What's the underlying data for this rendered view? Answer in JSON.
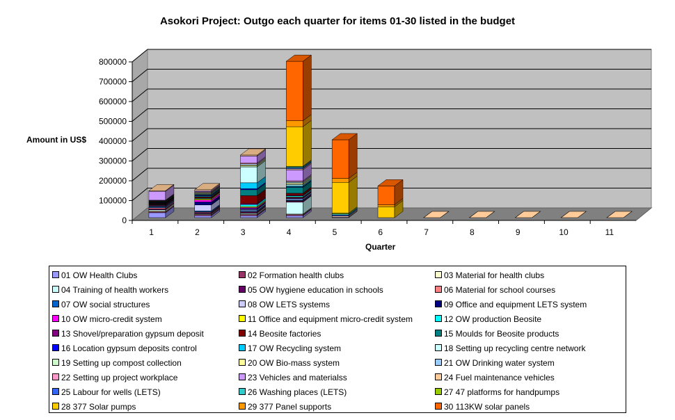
{
  "chart_data": {
    "type": "bar",
    "stacked": true,
    "three_d": true,
    "title": "Asokori Project: Outgo each quarter for items 01-30 listed in the budget",
    "xlabel": "Quarter",
    "ylabel": "Amount in US$",
    "ylim": [
      0,
      800000
    ],
    "yticks": [
      "0",
      "100000",
      "200000",
      "300000",
      "400000",
      "500000",
      "600000",
      "700000",
      "800000"
    ],
    "categories": [
      "1",
      "2",
      "3",
      "4",
      "5",
      "6",
      "7",
      "8",
      "9",
      "10",
      "11"
    ],
    "grid": true,
    "legend_position": "bottom",
    "series": [
      {
        "name": "01 OW Health Clubs",
        "color": "#9999FF",
        "values": [
          25000,
          10000,
          10000,
          10000,
          3000,
          0,
          0,
          0,
          0,
          0,
          0
        ]
      },
      {
        "name": "02 Formation health clubs",
        "color": "#993366",
        "values": [
          5000,
          5000,
          5000,
          5000,
          0,
          0,
          0,
          0,
          0,
          0,
          0
        ]
      },
      {
        "name": "03 Material for health clubs",
        "color": "#FFFFCC",
        "values": [
          5000,
          3000,
          3000,
          3000,
          0,
          0,
          0,
          0,
          0,
          0,
          0
        ]
      },
      {
        "name": "04 Training of health workers",
        "color": "#CCFFFF",
        "values": [
          5000,
          3000,
          5000,
          60000,
          0,
          0,
          0,
          0,
          0,
          0,
          0
        ]
      },
      {
        "name": "05 OW hygiene education in schools",
        "color": "#660066",
        "values": [
          5000,
          5000,
          5000,
          5000,
          0,
          0,
          0,
          0,
          0,
          0,
          0
        ]
      },
      {
        "name": "06 Material for school courses",
        "color": "#FF8080",
        "values": [
          5000,
          3000,
          3000,
          3000,
          0,
          0,
          0,
          0,
          0,
          0,
          0
        ]
      },
      {
        "name": "07 OW social structures",
        "color": "#0066CC",
        "values": [
          5000,
          5000,
          5000,
          5000,
          0,
          0,
          0,
          0,
          0,
          0,
          0
        ]
      },
      {
        "name": "08 OW LETS systems",
        "color": "#CCCCFF",
        "values": [
          3000,
          30000,
          5000,
          5000,
          0,
          0,
          0,
          0,
          0,
          0,
          0
        ]
      },
      {
        "name": "09 Office and equipment LETS system",
        "color": "#000080",
        "values": [
          2000,
          15000,
          5000,
          3000,
          0,
          0,
          0,
          0,
          0,
          0,
          0
        ]
      },
      {
        "name": "10 OW micro-credit system",
        "color": "#FF00FF",
        "values": [
          3000,
          10000,
          5000,
          3000,
          0,
          0,
          0,
          0,
          0,
          0,
          0
        ]
      },
      {
        "name": "11 Office and equipment micro-credit system",
        "color": "#FFFF00",
        "values": [
          2000,
          5000,
          5000,
          3000,
          0,
          0,
          0,
          0,
          0,
          0,
          0
        ]
      },
      {
        "name": "12 OW  production Beosite",
        "color": "#00FFFF",
        "values": [
          2000,
          3000,
          10000,
          5000,
          0,
          0,
          0,
          0,
          0,
          0,
          0
        ]
      },
      {
        "name": "13 Shovel/preparation gypsum deposit",
        "color": "#800080",
        "values": [
          2000,
          3000,
          5000,
          3000,
          0,
          0,
          0,
          0,
          0,
          0,
          0
        ]
      },
      {
        "name": "14 Beosite factories",
        "color": "#800000",
        "values": [
          3000,
          5000,
          40000,
          10000,
          0,
          0,
          0,
          0,
          0,
          0,
          0
        ]
      },
      {
        "name": "15 Moulds for Beosite products",
        "color": "#008080",
        "values": [
          2000,
          5000,
          30000,
          30000,
          0,
          0,
          0,
          0,
          0,
          0,
          0
        ]
      },
      {
        "name": "16 Location gypsum deposits control",
        "color": "#0000FF",
        "values": [
          2000,
          3000,
          5000,
          3000,
          0,
          0,
          0,
          0,
          0,
          0,
          0
        ]
      },
      {
        "name": "17 OW Recycling system",
        "color": "#00CCFF",
        "values": [
          2000,
          3000,
          30000,
          5000,
          0,
          0,
          0,
          0,
          0,
          0,
          0
        ]
      },
      {
        "name": "18 Setting up recycling centre network",
        "color": "#CCFFFF",
        "values": [
          2000,
          3000,
          80000,
          5000,
          0,
          0,
          0,
          0,
          0,
          0,
          0
        ]
      },
      {
        "name": "19 Setting up compost collection",
        "color": "#CCFFCC",
        "values": [
          2000,
          3000,
          5000,
          5000,
          0,
          0,
          0,
          0,
          0,
          0,
          0
        ]
      },
      {
        "name": "20 OW Bio-mass system",
        "color": "#FFFF99",
        "values": [
          2000,
          3000,
          5000,
          5000,
          0,
          0,
          0,
          0,
          0,
          0,
          0
        ]
      },
      {
        "name": "21 OW Drinking water system",
        "color": "#99CCFF",
        "values": [
          2000,
          3000,
          5000,
          5000,
          0,
          0,
          0,
          0,
          0,
          0,
          0
        ]
      },
      {
        "name": "22 Setting up project workplace",
        "color": "#FF99CC",
        "values": [
          2000,
          3000,
          5000,
          5000,
          0,
          0,
          0,
          0,
          0,
          0,
          0
        ]
      },
      {
        "name": "23 Vehicles and materialss",
        "color": "#CC99FF",
        "values": [
          45000,
          5000,
          35000,
          55000,
          0,
          0,
          0,
          0,
          0,
          0,
          0
        ]
      },
      {
        "name": "24 Fuel maintenance vehicles",
        "color": "#FFCC99",
        "values": [
          3000,
          5000,
          5000,
          5000,
          5000,
          0,
          0,
          0,
          0,
          0,
          0
        ]
      },
      {
        "name": "25 Labour for wells (LETS)",
        "color": "#3366FF",
        "values": [
          0,
          0,
          0,
          5000,
          5000,
          0,
          0,
          0,
          0,
          0,
          0
        ]
      },
      {
        "name": "26 Washing places (LETS)",
        "color": "#33CCCC",
        "values": [
          0,
          0,
          0,
          5000,
          5000,
          0,
          0,
          0,
          0,
          0,
          0
        ]
      },
      {
        "name": "27 47 platforms for handpumps",
        "color": "#99CC00",
        "values": [
          0,
          0,
          0,
          3000,
          5000,
          0,
          0,
          0,
          0,
          0,
          0
        ]
      },
      {
        "name": "28 377 Solar pumps",
        "color": "#FFCC00",
        "values": [
          0,
          0,
          0,
          200000,
          155000,
          55000,
          0,
          0,
          0,
          0,
          0
        ]
      },
      {
        "name": "29 377 Panel supports",
        "color": "#FF9900",
        "values": [
          0,
          0,
          0,
          30000,
          20000,
          10000,
          0,
          0,
          0,
          0,
          0
        ]
      },
      {
        "name": "30 113KW solar panels",
        "color": "#FF6600",
        "values": [
          0,
          0,
          0,
          300000,
          195000,
          95000,
          0,
          0,
          0,
          0,
          0
        ]
      }
    ]
  }
}
